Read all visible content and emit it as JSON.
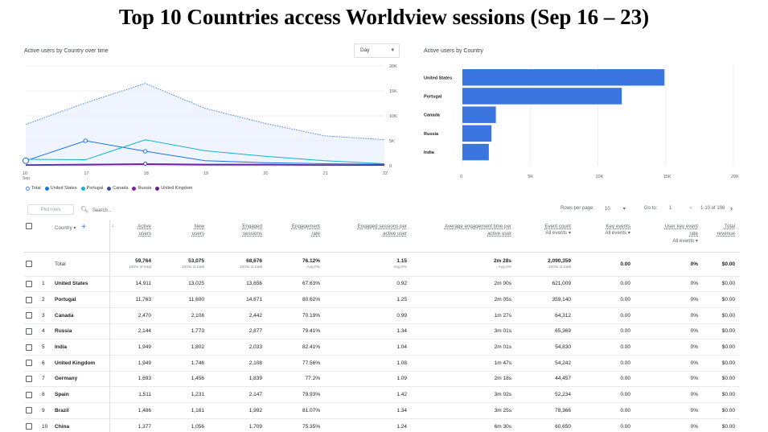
{
  "title": "Top 10 Countries access Worldview sessions (Sep 16 – 23)",
  "line_card": {
    "title": "Active users by Country over time",
    "select_value": "Day",
    "y_ticks": [
      "20K",
      "15K",
      "10K",
      "5K",
      "0"
    ],
    "x_ticks": [
      "16",
      "17",
      "18",
      "19",
      "20",
      "21",
      "22"
    ],
    "x_sub": "Sep",
    "legend": [
      {
        "label": "Total",
        "color": "#4285f4"
      },
      {
        "label": "United States",
        "color": "#1a73e8"
      },
      {
        "label": "Portugal",
        "color": "#12b5cb"
      },
      {
        "label": "Canada",
        "color": "#3949ab"
      },
      {
        "label": "Russia",
        "color": "#7b1fa2"
      },
      {
        "label": "United Kingdom",
        "color": "#6a1b9a"
      }
    ]
  },
  "bar_card": {
    "title": "Active users by Country",
    "x_ticks": [
      "0",
      "5K",
      "10K",
      "15K",
      "20K"
    ]
  },
  "chart_data": [
    {
      "type": "line",
      "title": "Active users by Country over time",
      "x": [
        "16",
        "17",
        "18",
        "19",
        "20",
        "21",
        "22"
      ],
      "ylim": [
        0,
        20000
      ],
      "series": [
        {
          "name": "Total",
          "values": [
            8300,
            12600,
            16500,
            11500,
            8500,
            6000,
            5200
          ]
        },
        {
          "name": "United States",
          "values": [
            1000,
            5000,
            2900,
            1000,
            600,
            400,
            300
          ]
        },
        {
          "name": "Portugal",
          "values": [
            1300,
            1200,
            5200,
            3000,
            1900,
            1000,
            400
          ]
        },
        {
          "name": "Canada",
          "values": [
            200,
            300,
            400,
            300,
            300,
            200,
            200
          ]
        },
        {
          "name": "Russia",
          "values": [
            100,
            200,
            300,
            200,
            200,
            100,
            100
          ]
        },
        {
          "name": "United Kingdom",
          "values": [
            100,
            150,
            250,
            150,
            150,
            100,
            100
          ]
        }
      ]
    },
    {
      "type": "bar",
      "title": "Active users by Country",
      "categories": [
        "United States",
        "Portugal",
        "Canada",
        "Russia",
        "India"
      ],
      "values": [
        14911,
        11763,
        2470,
        2144,
        1949
      ],
      "xlim": [
        0,
        20000
      ]
    }
  ],
  "toolbar": {
    "plot_rows": "Plot rows",
    "search_placeholder": "Search...",
    "rows_per_page_label": "Rows per page:",
    "rows_per_page": "10",
    "goto_label": "Go to:",
    "goto_value": "1",
    "range": "1-10 of 198"
  },
  "table": {
    "headers": {
      "country": "Country",
      "active_users": [
        "Active",
        "users"
      ],
      "new_users": [
        "New",
        "users"
      ],
      "engaged_sessions": [
        "Engaged",
        "sessions"
      ],
      "engagement_rate": [
        "Engagement",
        "rate"
      ],
      "engaged_per_user": [
        "Engaged sessions per",
        "active user"
      ],
      "avg_time": [
        "Average engagement time per",
        "active user"
      ],
      "event_count": [
        "Event count",
        "All events"
      ],
      "key_events": [
        "Key events",
        "All events"
      ],
      "user_key_rate": [
        "User key event",
        "rate",
        "All events"
      ],
      "revenue": [
        "Total",
        "revenue"
      ]
    },
    "total": {
      "label": "Total",
      "active_users": "59,764",
      "active_users_sub": "100% of total",
      "new_users": "53,075",
      "new_users_sub": "100% of total",
      "engaged_sessions": "68,676",
      "engaged_sessions_sub": "100% of total",
      "engagement_rate": "76.12%",
      "engagement_rate_sub": "Avg 0%",
      "engaged_per_user": "1.15",
      "engaged_per_user_sub": "Avg 0%",
      "avg_time": "2m 28s",
      "avg_time_sub": "Avg 0%",
      "event_count": "2,090,359",
      "event_count_sub": "100% of total",
      "key_events": "0.00",
      "user_key_rate": "0%",
      "revenue": "$0.00"
    },
    "rows": [
      {
        "n": "1",
        "country": "United States",
        "active": "14,911",
        "new": "13,025",
        "engaged": "13,656",
        "rate": "67.63%",
        "per_user": "0.92",
        "time": "2m 00s",
        "events": "621,009",
        "key": "0.00",
        "ukr": "0%",
        "rev": "$0.00"
      },
      {
        "n": "2",
        "country": "Portugal",
        "active": "11,763",
        "new": "11,600",
        "engaged": "14,671",
        "rate": "80.62%",
        "per_user": "1.25",
        "time": "2m 05s",
        "events": "359,140",
        "key": "0.00",
        "ukr": "0%",
        "rev": "$0.00"
      },
      {
        "n": "3",
        "country": "Canada",
        "active": "2,470",
        "new": "2,108",
        "engaged": "2,442",
        "rate": "70.19%",
        "per_user": "0.99",
        "time": "1m 27s",
        "events": "64,312",
        "key": "0.00",
        "ukr": "0%",
        "rev": "$0.00"
      },
      {
        "n": "4",
        "country": "Russia",
        "active": "2,144",
        "new": "1,773",
        "engaged": "2,877",
        "rate": "79.41%",
        "per_user": "1.34",
        "time": "3m 01s",
        "events": "65,369",
        "key": "0.00",
        "ukr": "0%",
        "rev": "$0.00"
      },
      {
        "n": "5",
        "country": "India",
        "active": "1,949",
        "new": "1,802",
        "engaged": "2,033",
        "rate": "82.41%",
        "per_user": "1.04",
        "time": "2m 01s",
        "events": "54,830",
        "key": "0.00",
        "ukr": "0%",
        "rev": "$0.00"
      },
      {
        "n": "6",
        "country": "United Kingdom",
        "active": "1,949",
        "new": "1,746",
        "engaged": "2,108",
        "rate": "77.56%",
        "per_user": "1.08",
        "time": "1m 47s",
        "events": "54,242",
        "key": "0.00",
        "ukr": "0%",
        "rev": "$0.00"
      },
      {
        "n": "7",
        "country": "Germany",
        "active": "1,693",
        "new": "1,456",
        "engaged": "1,839",
        "rate": "77.2%",
        "per_user": "1.09",
        "time": "2m 18s",
        "events": "44,457",
        "key": "0.00",
        "ukr": "0%",
        "rev": "$0.00"
      },
      {
        "n": "8",
        "country": "Spain",
        "active": "1,511",
        "new": "1,231",
        "engaged": "2,147",
        "rate": "79.93%",
        "per_user": "1.42",
        "time": "3m 02s",
        "events": "52,234",
        "key": "0.00",
        "ukr": "0%",
        "rev": "$0.00"
      },
      {
        "n": "9",
        "country": "Brazil",
        "active": "1,486",
        "new": "1,181",
        "engaged": "1,992",
        "rate": "81.07%",
        "per_user": "1.34",
        "time": "3m 25s",
        "events": "78,366",
        "key": "0.00",
        "ukr": "0%",
        "rev": "$0.00"
      },
      {
        "n": "10",
        "country": "China",
        "active": "1,377",
        "new": "1,056",
        "engaged": "1,709",
        "rate": "75.35%",
        "per_user": "1.24",
        "time": "6m 30s",
        "events": "60,650",
        "key": "0.00",
        "ukr": "0%",
        "rev": "$0.00"
      }
    ]
  }
}
